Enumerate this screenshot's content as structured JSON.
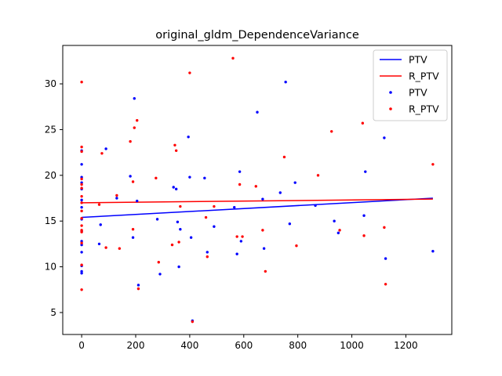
{
  "chart_data": {
    "type": "scatter",
    "title": "original_gldm_DependenceVariance",
    "xlabel": "",
    "ylabel": "",
    "xlim": [
      -70,
      1370
    ],
    "ylim": [
      2.6,
      34.2
    ],
    "x_ticks": [
      0,
      200,
      400,
      600,
      800,
      1000,
      1200
    ],
    "y_ticks": [
      5,
      10,
      15,
      20,
      25,
      30
    ],
    "grid": false,
    "legend_position": "top-right",
    "legend": [
      {
        "label": "PTV",
        "kind": "line",
        "color": "#0000ff"
      },
      {
        "label": "R_PTV",
        "kind": "line",
        "color": "#ff0000"
      },
      {
        "label": "PTV",
        "kind": "marker",
        "color": "#0000ff"
      },
      {
        "label": "R_PTV",
        "kind": "marker",
        "color": "#ff0000"
      }
    ],
    "fit_lines": [
      {
        "name": "PTV",
        "color": "#0000ff",
        "x": [
          0,
          1300
        ],
        "y": [
          15.4,
          17.5
        ]
      },
      {
        "name": "R_PTV",
        "color": "#ff0000",
        "x": [
          0,
          1300
        ],
        "y": [
          17.0,
          17.4
        ]
      }
    ],
    "series": [
      {
        "name": "PTV",
        "color": "#0000ff",
        "points": [
          [
            0,
            22.7
          ],
          [
            0,
            21.2
          ],
          [
            0,
            19.8
          ],
          [
            0,
            19.2
          ],
          [
            0,
            18.5
          ],
          [
            0,
            17.3
          ],
          [
            0,
            16.5
          ],
          [
            0,
            15.2
          ],
          [
            0,
            13.9
          ],
          [
            0,
            12.8
          ],
          [
            0,
            12.4
          ],
          [
            0,
            11.6
          ],
          [
            0,
            10.1
          ],
          [
            0,
            9.5
          ],
          [
            0,
            9.3
          ],
          [
            65,
            12.5
          ],
          [
            70,
            14.6
          ],
          [
            90,
            22.9
          ],
          [
            130,
            17.5
          ],
          [
            180,
            19.9
          ],
          [
            190,
            13.2
          ],
          [
            195,
            28.4
          ],
          [
            205,
            17.2
          ],
          [
            210,
            8.0
          ],
          [
            280,
            15.2
          ],
          [
            290,
            9.2
          ],
          [
            340,
            18.7
          ],
          [
            350,
            18.5
          ],
          [
            355,
            14.9
          ],
          [
            360,
            10.0
          ],
          [
            365,
            14.1
          ],
          [
            395,
            24.2
          ],
          [
            400,
            19.8
          ],
          [
            405,
            13.2
          ],
          [
            410,
            4.1
          ],
          [
            455,
            19.7
          ],
          [
            465,
            11.6
          ],
          [
            490,
            14.4
          ],
          [
            565,
            16.5
          ],
          [
            575,
            11.4
          ],
          [
            585,
            20.4
          ],
          [
            590,
            12.8
          ],
          [
            650,
            26.9
          ],
          [
            670,
            17.4
          ],
          [
            675,
            12.0
          ],
          [
            735,
            18.1
          ],
          [
            755,
            30.2
          ],
          [
            770,
            14.7
          ],
          [
            790,
            19.2
          ],
          [
            865,
            16.7
          ],
          [
            935,
            15.0
          ],
          [
            950,
            13.7
          ],
          [
            1045,
            15.6
          ],
          [
            1050,
            20.4
          ],
          [
            1120,
            24.1
          ],
          [
            1125,
            10.9
          ],
          [
            1300,
            11.7
          ]
        ]
      },
      {
        "name": "R_PTV",
        "color": "#ff0000",
        "points": [
          [
            0,
            30.2
          ],
          [
            0,
            23.1
          ],
          [
            0,
            22.6
          ],
          [
            0,
            19.6
          ],
          [
            0,
            19.0
          ],
          [
            0,
            18.6
          ],
          [
            0,
            17.7
          ],
          [
            0,
            17.0
          ],
          [
            0,
            16.1
          ],
          [
            0,
            15.3
          ],
          [
            0,
            14.5
          ],
          [
            0,
            14.0
          ],
          [
            0,
            13.8
          ],
          [
            0,
            12.6
          ],
          [
            0,
            10.2
          ],
          [
            0,
            7.5
          ],
          [
            65,
            16.8
          ],
          [
            75,
            22.4
          ],
          [
            90,
            12.1
          ],
          [
            130,
            17.8
          ],
          [
            140,
            12.0
          ],
          [
            180,
            23.7
          ],
          [
            190,
            19.3
          ],
          [
            190,
            14.1
          ],
          [
            195,
            25.2
          ],
          [
            205,
            26.0
          ],
          [
            210,
            7.6
          ],
          [
            275,
            19.7
          ],
          [
            285,
            10.5
          ],
          [
            335,
            12.4
          ],
          [
            345,
            23.3
          ],
          [
            350,
            22.7
          ],
          [
            360,
            12.7
          ],
          [
            365,
            16.6
          ],
          [
            400,
            31.2
          ],
          [
            410,
            4.0
          ],
          [
            460,
            15.4
          ],
          [
            465,
            11.1
          ],
          [
            490,
            16.6
          ],
          [
            560,
            32.8
          ],
          [
            575,
            13.3
          ],
          [
            585,
            19.0
          ],
          [
            595,
            13.3
          ],
          [
            645,
            18.8
          ],
          [
            670,
            14.0
          ],
          [
            680,
            9.5
          ],
          [
            750,
            22.0
          ],
          [
            795,
            12.3
          ],
          [
            875,
            20.0
          ],
          [
            925,
            24.8
          ],
          [
            955,
            14.0
          ],
          [
            1040,
            25.7
          ],
          [
            1045,
            13.4
          ],
          [
            1120,
            14.3
          ],
          [
            1125,
            8.1
          ],
          [
            1300,
            21.2
          ]
        ]
      }
    ]
  }
}
